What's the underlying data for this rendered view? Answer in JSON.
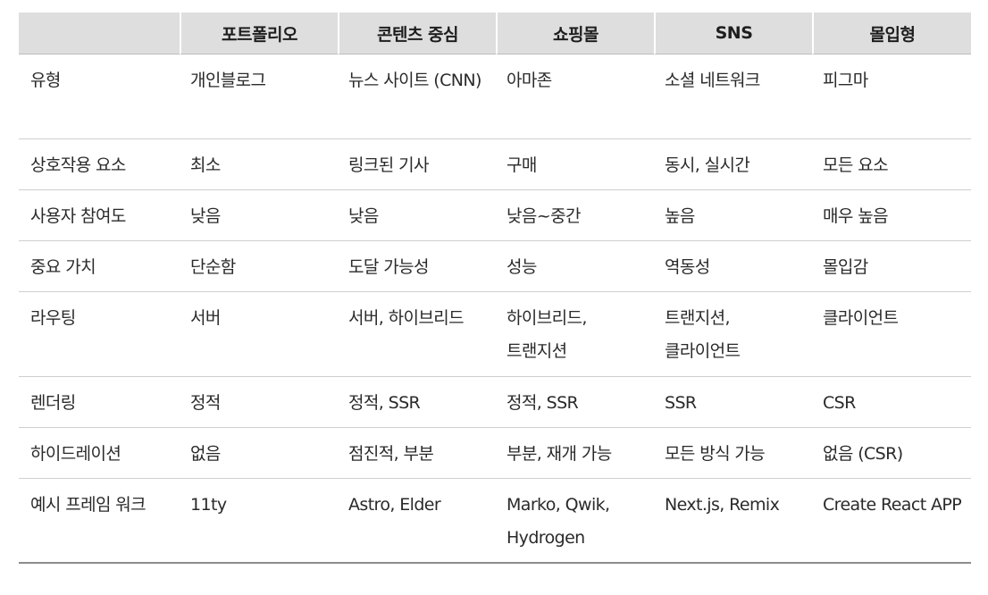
{
  "table": {
    "headers": [
      "",
      "포트폴리오",
      "콘텐츠 중심",
      "쇼핑몰",
      "SNS",
      "몰입형"
    ],
    "rows": [
      {
        "label": "유형",
        "cells": [
          "개인블로그",
          "뉴스 사이트 (CNN)",
          "아마존",
          "소셜 네트워크",
          "피그마"
        ]
      },
      {
        "label": "상호작용 요소",
        "cells": [
          "최소",
          "링크된 기사",
          "구매",
          "동시, 실시간",
          "모든 요소"
        ]
      },
      {
        "label": "사용자 참여도",
        "cells": [
          "낮음",
          "낮음",
          "낮음~중간",
          "높음",
          "매우 높음"
        ]
      },
      {
        "label": "중요 가치",
        "cells": [
          "단순함",
          "도달 가능성",
          "성능",
          "역동성",
          "몰입감"
        ]
      },
      {
        "label": "라우팅",
        "cells": [
          "서버",
          "서버, 하이브리드",
          "하이브리드, 트랜지션",
          "트랜지션, 클라이언트",
          "클라이언트"
        ]
      },
      {
        "label": "렌더링",
        "cells": [
          "정적",
          "정적, SSR",
          "정적, SSR",
          "SSR",
          "CSR"
        ]
      },
      {
        "label": "하이드레이션",
        "cells": [
          "없음",
          "점진적, 부분",
          "부분, 재개 가능",
          "모든 방식 가능",
          "없음 (CSR)"
        ]
      },
      {
        "label": "예시 프레임 워크",
        "cells": [
          "11ty",
          "Astro, Elder",
          "Marko, Qwik, Hydrogen",
          "Next.js, Remix",
          "Create React APP"
        ]
      }
    ]
  }
}
